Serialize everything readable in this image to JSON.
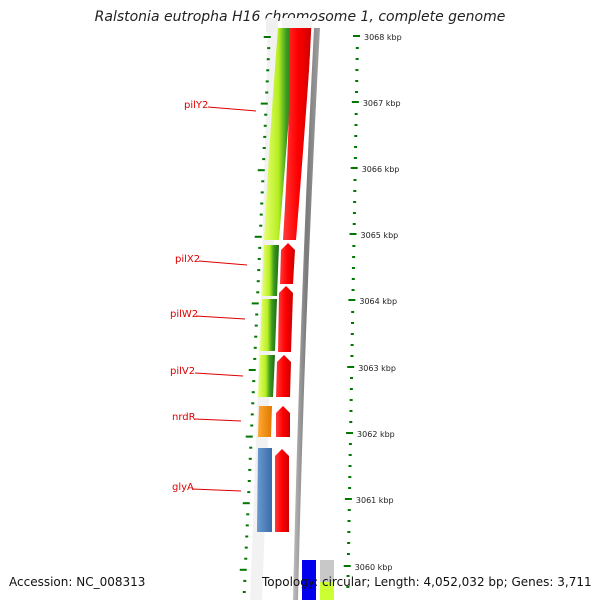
{
  "title": "Ralstonia eutropha H16 chromosome 1, complete genome",
  "footer": {
    "accession": "Accession: NC_008313",
    "topology": "Topology: circular; Length: 4,052,032 bp; Genes: 3,711"
  },
  "scale": {
    "labels": [
      "3068 kbp",
      "3067 kbp",
      "3066 kbp",
      "3065 kbp",
      "3064 kbp",
      "3063 kbp",
      "3062 kbp",
      "3061 kbp",
      "3060 kbp"
    ]
  },
  "genes": [
    {
      "label": "pilY2",
      "color": "#ccff33"
    },
    {
      "label": "pilX2",
      "color": "#ccff33"
    },
    {
      "label": "pilW2",
      "color": "#ccff33"
    },
    {
      "label": "pilV2",
      "color": "#ccff33"
    },
    {
      "label": "nrdR",
      "color": "#f28c00"
    },
    {
      "label": "glyA",
      "color": "#4a7fbf"
    }
  ],
  "colors": {
    "label_red": "#dd0000",
    "tick_green": "#007700",
    "cds_red": "#ff0000",
    "gene_green": "#ccff33",
    "gene_dark_green": "#3a8a1e",
    "backbone_grey": "#888888",
    "blue_feature": "#0000ee"
  }
}
